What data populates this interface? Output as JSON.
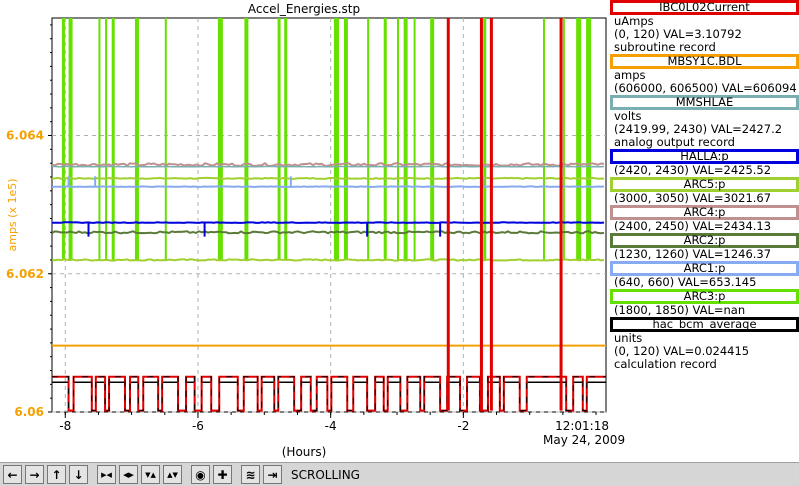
{
  "window_title": "Accel_Energies.stp",
  "chart_data": {
    "type": "line",
    "title": "Accel_Energies.stp",
    "xlabel": "(Hours)",
    "ylabel": "amps (x 1e5)",
    "xlim": [
      -8.2,
      0.15
    ],
    "ylim": [
      6.06,
      6.0657
    ],
    "x_ticks": [
      -8,
      -6,
      -4,
      -2
    ],
    "x_tick_labels": [
      "-8",
      "-6",
      "-4",
      "-2"
    ],
    "y_ticks": [
      6.06,
      6.062,
      6.064
    ],
    "y_tick_labels": [
      "6.06",
      "6.062",
      "6.064"
    ],
    "time_label": "12:01:18",
    "date_label": "May 24, 2009",
    "grid": true,
    "series": [
      {
        "name": "IBC0L02Current",
        "color": "#e00000",
        "base": 6.06051,
        "low": 6.06002,
        "high": 6.0657,
        "spike_x": [
          -2.25,
          -1.75,
          -1.6,
          -0.55
        ],
        "dip_x": [
          -7.95,
          -7.6,
          -7.4,
          -7.1,
          -6.9,
          -6.6,
          -6.3,
          -6.05,
          -5.8,
          -5.4,
          -5.1,
          -4.85,
          -4.55,
          -4.3,
          -4.05,
          -3.75,
          -3.45,
          -3.2,
          -2.95,
          -2.65,
          -2.35,
          -2.05,
          -1.75,
          -1.45,
          -1.15,
          -0.45,
          -0.2
        ]
      },
      {
        "name": "MBSY1C.BDL",
        "color": "#f5a000",
        "value": 6.06096
      },
      {
        "name": "MMSHLAE",
        "color": "#7aaeb0",
        "value": 6.06355
      },
      {
        "name": "HALLA:p",
        "color": "#0000dd",
        "value": 6.06274
      },
      {
        "name": "ARC5:p",
        "color": "#a0d030",
        "value": 6.06338,
        "lower": 6.0622
      },
      {
        "name": "ARC4:p",
        "color": "#c09090",
        "value": 6.06358
      },
      {
        "name": "ARC2:p",
        "color": "#5a7a3a",
        "value": 6.0626
      },
      {
        "name": "ARC1:p",
        "color": "#88aaf0",
        "value": 6.06326
      },
      {
        "name": "ARC3:p",
        "color": "#66e000",
        "spike_x": [
          -8.05,
          -7.95,
          -7.5,
          -7.4,
          -7.3,
          -6.95,
          -6.5,
          -5.7,
          -5.3,
          -4.8,
          -4.7,
          -3.95,
          -3.8,
          -3.45,
          -3.2,
          -3.0,
          -2.9,
          -2.75,
          -2.5,
          -1.7,
          -0.8,
          -0.5,
          -0.3,
          -0.15
        ]
      },
      {
        "name": "hac_bcm_average",
        "color": "#000000",
        "value": 6.06043
      }
    ]
  },
  "legend": [
    {
      "name": "IBC0L02Current",
      "color": "#e00000",
      "lines": [
        "uAmps",
        "(0, 120) VAL=3.10792",
        "subroutine record"
      ]
    },
    {
      "name": "MBSY1C.BDL",
      "color": "#f5a000",
      "lines": [
        "amps",
        "(606000, 606500)  VAL=606094"
      ]
    },
    {
      "name": "MMSHLAE",
      "color": "#7aaeb0",
      "lines": [
        "volts",
        "(2419.99, 2430)  VAL=2427.2",
        "analog output record"
      ]
    },
    {
      "name": "HALLA:p",
      "color": "#0000dd",
      "lines": [
        "(2420, 2430) VAL=2425.52"
      ]
    },
    {
      "name": "ARC5:p",
      "color": "#a0d030",
      "lines": [
        "(3000, 3050) VAL=3021.67"
      ]
    },
    {
      "name": "ARC4:p",
      "color": "#c09090",
      "lines": [
        "(2400, 2450) VAL=2434.13"
      ]
    },
    {
      "name": "ARC2:p",
      "color": "#5a7a3a",
      "lines": [
        "(1230, 1260) VAL=1246.37"
      ]
    },
    {
      "name": "ARC1:p",
      "color": "#88aaf0",
      "lines": [
        "(640, 660) VAL=653.145"
      ]
    },
    {
      "name": "ARC3:p",
      "color": "#66e000",
      "lines": [
        "(1800, 1850) VAL=nan"
      ]
    },
    {
      "name": "hac_bcm_average",
      "color": "#000000",
      "lines": [
        "units",
        "(0, 120) VAL=0.024415",
        "calculation record"
      ]
    }
  ],
  "toolbar": {
    "buttons": [
      {
        "name": "scroll-left-icon",
        "glyph": "←"
      },
      {
        "name": "scroll-right-icon",
        "glyph": "→"
      },
      {
        "name": "scroll-up-icon",
        "glyph": "↑"
      },
      {
        "name": "scroll-down-icon",
        "glyph": "↓"
      },
      {
        "name": "zoom-in-horizontal-icon",
        "glyph": "▶◀"
      },
      {
        "name": "zoom-out-horizontal-icon",
        "glyph": "◀▶"
      },
      {
        "name": "zoom-in-vertical-icon",
        "glyph": "▼▲"
      },
      {
        "name": "zoom-out-vertical-icon",
        "glyph": "▲▼"
      },
      {
        "name": "autoscale-icon",
        "glyph": "◉"
      },
      {
        "name": "add-icon",
        "glyph": "✚"
      },
      {
        "name": "config-icon",
        "glyph": "≋"
      },
      {
        "name": "jump-end-icon",
        "glyph": "⇥"
      }
    ],
    "status": "SCROLLING"
  }
}
